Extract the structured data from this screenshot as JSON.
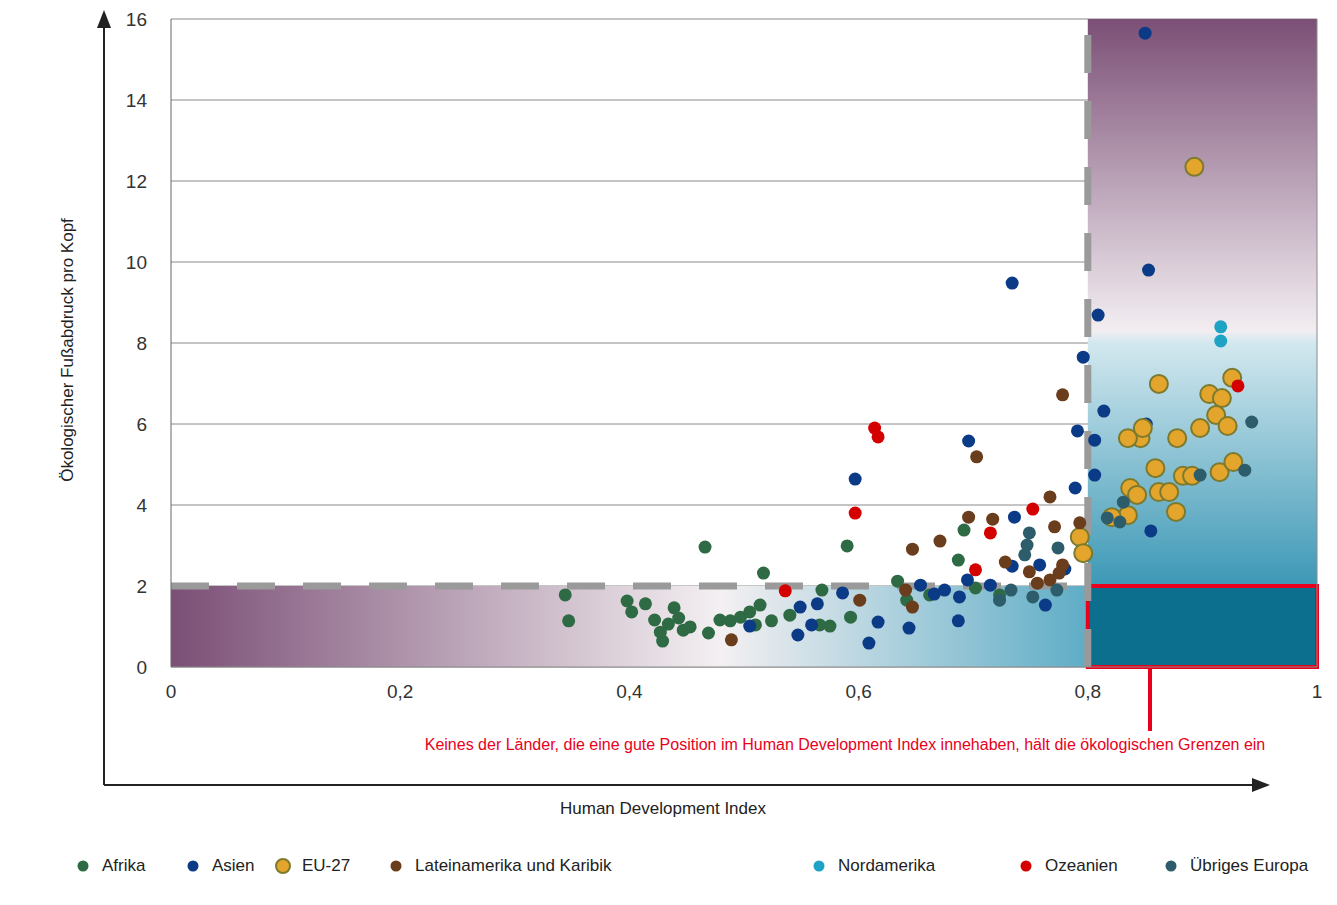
{
  "chart_data": {
    "type": "scatter",
    "x_label": "Human Development Index",
    "y_label": "Ökologischer Fußabdruck pro Kopf",
    "xlim": [
      0,
      1
    ],
    "xticks": [
      0,
      {
        "value": 0.2,
        "label": "0,2"
      },
      {
        "value": 0.4,
        "label": "0,4"
      },
      {
        "value": 0.6,
        "label": "0,6"
      },
      {
        "value": 0.8,
        "label": "0,8"
      },
      1
    ],
    "ylim": [
      0,
      16
    ],
    "yticks": [
      0,
      2,
      4,
      6,
      8,
      10,
      12,
      14,
      16
    ],
    "grid": true,
    "legend": "bottom",
    "reference_lines": {
      "x": 0.8,
      "y": 2
    },
    "annotation": {
      "text": "Keines der Länder, die eine gute Position im Human Development Index innehaben, hält die ökologischen Grenzen ein",
      "box": {
        "x": [
          0.8,
          1
        ],
        "y": [
          0,
          2
        ]
      }
    },
    "series": [
      {
        "name": "Afrika",
        "color": "#2e6b45",
        "marker": "circle",
        "x": [
          0.344,
          0.347,
          0.398,
          0.402,
          0.414,
          0.422,
          0.427,
          0.429,
          0.434,
          0.439,
          0.443,
          0.447,
          0.453,
          0.466,
          0.469,
          0.479,
          0.488,
          0.497,
          0.505,
          0.51,
          0.514,
          0.517,
          0.524,
          0.54,
          0.566,
          0.568,
          0.575,
          0.59,
          0.593,
          0.634,
          0.642,
          0.662,
          0.687,
          0.692,
          0.702,
          0.723
        ],
        "y": [
          1.78,
          1.14,
          1.63,
          1.36,
          1.56,
          1.16,
          0.86,
          0.64,
          1.06,
          1.46,
          1.21,
          0.91,
          0.99,
          2.96,
          0.84,
          1.16,
          1.14,
          1.23,
          1.36,
          1.04,
          1.53,
          2.32,
          1.14,
          1.28,
          1.04,
          1.9,
          1.01,
          2.99,
          1.23,
          2.12,
          1.65,
          1.78,
          2.64,
          3.38,
          1.95,
          1.78
        ]
      },
      {
        "name": "Asien",
        "color": "#0b3b86",
        "marker": "circle",
        "x": [
          0.85,
          0.734,
          0.853,
          0.809,
          0.796,
          0.814,
          0.851,
          0.791,
          0.806,
          0.696,
          0.597,
          0.789,
          0.806,
          0.736,
          0.855,
          0.758,
          0.734,
          0.695,
          0.654,
          0.666,
          0.675,
          0.688,
          0.715,
          0.763,
          0.687,
          0.644,
          0.617,
          0.609,
          0.586,
          0.564,
          0.549,
          0.547,
          0.559,
          0.505,
          0.78
        ],
        "y": [
          15.65,
          9.48,
          9.8,
          8.69,
          7.65,
          6.32,
          6.0,
          5.83,
          5.6,
          5.58,
          4.64,
          4.42,
          4.74,
          3.7,
          3.36,
          2.52,
          2.49,
          2.15,
          2.02,
          1.8,
          1.9,
          1.73,
          2.02,
          1.53,
          1.14,
          0.96,
          1.11,
          0.59,
          1.83,
          1.56,
          1.48,
          0.79,
          1.04,
          1.01,
          2.42
        ]
      },
      {
        "name": "EU-27",
        "color": "#e3a52c",
        "marker": "outlined_circle",
        "x": [
          0.893,
          0.862,
          0.926,
          0.906,
          0.917,
          0.846,
          0.835,
          0.878,
          0.898,
          0.912,
          0.922,
          0.848,
          0.859,
          0.837,
          0.843,
          0.862,
          0.871,
          0.883,
          0.891,
          0.915,
          0.927,
          0.877,
          0.835,
          0.821,
          0.793,
          0.796
        ],
        "y": [
          12.35,
          6.99,
          7.14,
          6.74,
          6.64,
          5.65,
          5.65,
          5.65,
          5.9,
          6.22,
          5.95,
          5.9,
          4.91,
          4.42,
          4.25,
          4.32,
          4.32,
          4.72,
          4.72,
          4.81,
          5.06,
          3.83,
          3.75,
          3.7,
          3.21,
          2.81
        ]
      },
      {
        "name": "Lateinamerika und Karibik",
        "color": "#6a3d1c",
        "marker": "circle",
        "x": [
          0.778,
          0.703,
          0.696,
          0.717,
          0.767,
          0.671,
          0.647,
          0.728,
          0.793,
          0.771,
          0.749,
          0.767,
          0.778,
          0.775,
          0.601,
          0.641,
          0.647,
          0.489,
          0.756
        ],
        "y": [
          6.72,
          5.19,
          3.7,
          3.65,
          4.2,
          3.11,
          2.91,
          2.59,
          3.56,
          3.46,
          2.35,
          2.15,
          2.52,
          2.32,
          1.65,
          1.9,
          1.48,
          0.67,
          2.07
        ]
      },
      {
        "name": "Nordamerika",
        "color": "#1ea3c4",
        "marker": "circle",
        "x": [
          0.916,
          0.916
        ],
        "y": [
          8.4,
          8.05
        ]
      },
      {
        "name": "Ozeanien",
        "color": "#d40000",
        "marker": "circle",
        "x": [
          0.614,
          0.617,
          0.597,
          0.931,
          0.752,
          0.715,
          0.702,
          0.536
        ],
        "y": [
          5.9,
          5.68,
          3.8,
          6.94,
          3.9,
          3.31,
          2.4,
          1.88
        ]
      },
      {
        "name": "Übriges Europa",
        "color": "#2d5d6a",
        "marker": "circle",
        "x": [
          0.943,
          0.937,
          0.898,
          0.831,
          0.817,
          0.828,
          0.749,
          0.747,
          0.745,
          0.774,
          0.752,
          0.723,
          0.733,
          0.773
        ],
        "y": [
          6.05,
          4.86,
          4.74,
          4.07,
          3.68,
          3.58,
          3.31,
          3.01,
          2.77,
          2.94,
          1.73,
          1.65,
          1.9,
          1.9
        ]
      }
    ]
  }
}
